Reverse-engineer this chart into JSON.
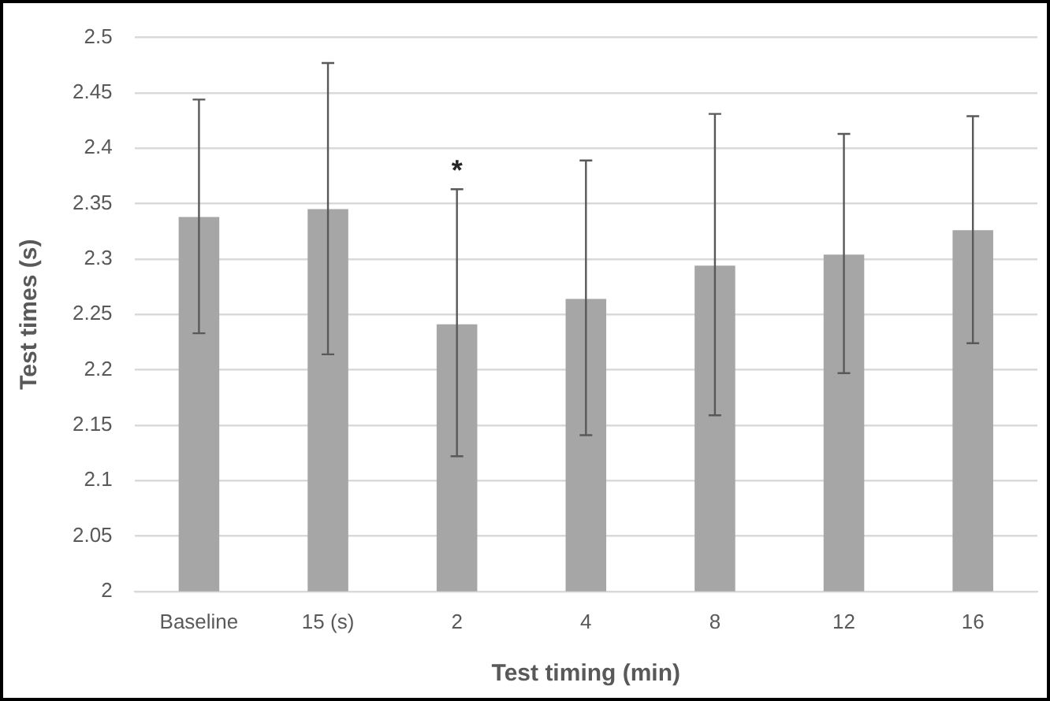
{
  "chart_data": {
    "type": "bar",
    "xlabel": "Test timing (min)",
    "ylabel": "Test times (s)",
    "categories": [
      "Baseline",
      "15 (s)",
      "2",
      "4",
      "8",
      "12",
      "16"
    ],
    "values": [
      2.338,
      2.345,
      2.241,
      2.264,
      2.294,
      2.304,
      2.326
    ],
    "errors": [
      [
        2.233,
        2.444
      ],
      [
        2.214,
        2.477
      ],
      [
        2.122,
        2.363
      ],
      [
        2.141,
        2.389
      ],
      [
        2.159,
        2.431
      ],
      [
        2.197,
        2.413
      ],
      [
        2.224,
        2.429
      ]
    ],
    "color": "#a6a6a6",
    "ylim": [
      2,
      2.5
    ],
    "yticks": [
      2,
      2.05,
      2.1,
      2.15,
      2.2,
      2.25,
      2.3,
      2.35,
      2.4,
      2.45,
      2.5
    ],
    "grid": "y",
    "legend": false,
    "annotations": [
      {
        "text": "*",
        "x": "2",
        "y": 2.363
      }
    ]
  }
}
